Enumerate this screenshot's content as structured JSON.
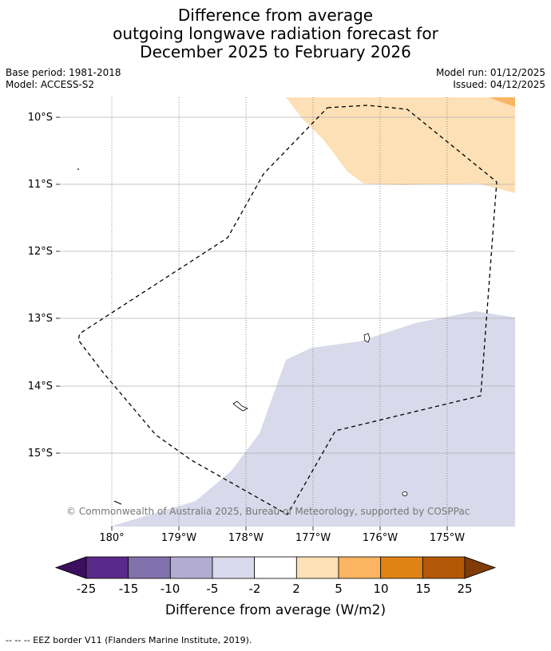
{
  "title": {
    "line1": "Difference from average",
    "line2": "outgoing longwave radiation forecast for",
    "line3": "December 2025 to February 2026"
  },
  "meta": {
    "base_period": "Base period: 1981-2018",
    "model": "Model: ACCESS-S2",
    "model_run": "Model run: 01/12/2025",
    "issued": "Issued: 04/12/2025"
  },
  "map": {
    "latitude_labels": [
      "10°S",
      "11°S",
      "12°S",
      "13°S",
      "14°S",
      "15°S"
    ],
    "longitude_labels": [
      "180°",
      "179°W",
      "178°W",
      "177°W",
      "176°W",
      "175°W"
    ],
    "copyright": "© Commonwealth of Australia 2025, Bureau of Meteorology, supported by COSPPac",
    "colors": {
      "negative_light": "#d8d9ea",
      "positive_light": "#fde0b6",
      "positive_mid": "#fab462",
      "gridline": "#b0b0b0",
      "eez": "#000000"
    }
  },
  "colorbar": {
    "tick_labels": [
      "-25",
      "-15",
      "-10",
      "-5",
      "-2",
      "2",
      "5",
      "10",
      "15",
      "25"
    ],
    "colors": [
      "#3b0f5e",
      "#5a2a8a",
      "#8171ac",
      "#b3acd2",
      "#d8d9ea",
      "#ffffff",
      "#fde0b6",
      "#fab462",
      "#e08214",
      "#b35806",
      "#7f3b08"
    ],
    "title": "Difference from average (W/m2)"
  },
  "legend_note": "--  --  -- EEZ border V11 (Flanders Marine Institute, 2019)."
}
